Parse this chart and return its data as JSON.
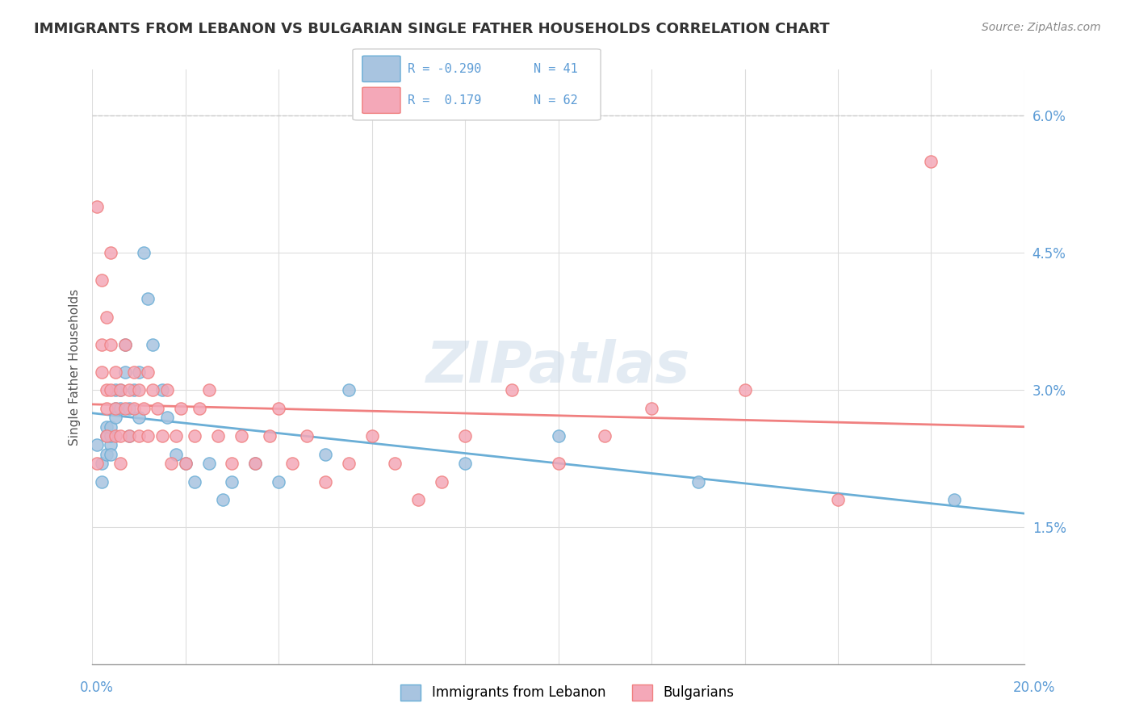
{
  "title": "IMMIGRANTS FROM LEBANON VS BULGARIAN SINGLE FATHER HOUSEHOLDS CORRELATION CHART",
  "source": "Source: ZipAtlas.com",
  "ylabel": "Single Father Households",
  "legend_label1": "Immigrants from Lebanon",
  "legend_label2": "Bulgarians",
  "r1": -0.29,
  "n1": 41,
  "r2": 0.179,
  "n2": 62,
  "color1": "#a8c4e0",
  "color2": "#f4a8b8",
  "line1_color": "#6aaed6",
  "line2_color": "#f08080",
  "watermark": "ZIPatlas",
  "xlim": [
    0.0,
    0.2
  ],
  "ylim": [
    0.0,
    0.065
  ],
  "yticks": [
    0.015,
    0.03,
    0.045,
    0.06
  ],
  "ytick_labels": [
    "1.5%",
    "3.0%",
    "4.5%",
    "6.0%"
  ],
  "blue_points_x": [
    0.001,
    0.002,
    0.002,
    0.003,
    0.003,
    0.003,
    0.004,
    0.004,
    0.004,
    0.004,
    0.005,
    0.005,
    0.005,
    0.006,
    0.006,
    0.007,
    0.007,
    0.008,
    0.008,
    0.009,
    0.01,
    0.01,
    0.011,
    0.012,
    0.013,
    0.015,
    0.016,
    0.018,
    0.02,
    0.022,
    0.025,
    0.028,
    0.03,
    0.035,
    0.04,
    0.05,
    0.055,
    0.08,
    0.1,
    0.13,
    0.185
  ],
  "blue_points_y": [
    0.024,
    0.02,
    0.022,
    0.025,
    0.023,
    0.026,
    0.024,
    0.025,
    0.026,
    0.023,
    0.028,
    0.03,
    0.027,
    0.028,
    0.03,
    0.032,
    0.035,
    0.025,
    0.028,
    0.03,
    0.027,
    0.032,
    0.045,
    0.04,
    0.035,
    0.03,
    0.027,
    0.023,
    0.022,
    0.02,
    0.022,
    0.018,
    0.02,
    0.022,
    0.02,
    0.023,
    0.03,
    0.022,
    0.025,
    0.02,
    0.018
  ],
  "pink_points_x": [
    0.001,
    0.001,
    0.002,
    0.002,
    0.002,
    0.003,
    0.003,
    0.003,
    0.003,
    0.004,
    0.004,
    0.004,
    0.005,
    0.005,
    0.005,
    0.006,
    0.006,
    0.006,
    0.007,
    0.007,
    0.008,
    0.008,
    0.009,
    0.009,
    0.01,
    0.01,
    0.011,
    0.012,
    0.012,
    0.013,
    0.014,
    0.015,
    0.016,
    0.017,
    0.018,
    0.019,
    0.02,
    0.022,
    0.023,
    0.025,
    0.027,
    0.03,
    0.032,
    0.035,
    0.038,
    0.04,
    0.043,
    0.046,
    0.05,
    0.055,
    0.06,
    0.065,
    0.07,
    0.075,
    0.08,
    0.09,
    0.1,
    0.11,
    0.12,
    0.14,
    0.16,
    0.18
  ],
  "pink_points_y": [
    0.022,
    0.05,
    0.042,
    0.032,
    0.035,
    0.025,
    0.03,
    0.028,
    0.038,
    0.045,
    0.03,
    0.035,
    0.028,
    0.032,
    0.025,
    0.022,
    0.03,
    0.025,
    0.035,
    0.028,
    0.03,
    0.025,
    0.028,
    0.032,
    0.03,
    0.025,
    0.028,
    0.032,
    0.025,
    0.03,
    0.028,
    0.025,
    0.03,
    0.022,
    0.025,
    0.028,
    0.022,
    0.025,
    0.028,
    0.03,
    0.025,
    0.022,
    0.025,
    0.022,
    0.025,
    0.028,
    0.022,
    0.025,
    0.02,
    0.022,
    0.025,
    0.022,
    0.018,
    0.02,
    0.025,
    0.03,
    0.022,
    0.025,
    0.028,
    0.03,
    0.018,
    0.055
  ]
}
